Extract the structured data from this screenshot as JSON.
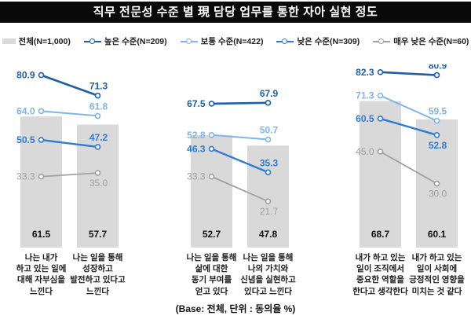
{
  "title": "직무 전문성 수준 별 現 담당 업무를 통한 자아 실현 정도",
  "footer": "(Base: 전체, 단위 : 동의율 %)",
  "legend": [
    {
      "name": "total",
      "label": "전체(N=1,000)",
      "type": "bar",
      "color": "#d9d9d9"
    },
    {
      "name": "high",
      "label": "높은 수준(N=209)",
      "type": "line",
      "color": "#1e5fa9"
    },
    {
      "name": "medium",
      "label": "보통 수준(N=422)",
      "type": "line",
      "color": "#82b4e9"
    },
    {
      "name": "low",
      "label": "낮은 수준(N=309)",
      "type": "line",
      "color": "#2e7bd4"
    },
    {
      "name": "very-low",
      "label": "매우 낮은 수준(N=60)",
      "type": "line",
      "color": "#9e9e9e"
    }
  ],
  "chart_data": {
    "type": "bar",
    "title": "직무 전문성 수준 별 現 담당 업무를 통한 자아 실현 정도",
    "xlabel": "",
    "ylabel": "동의율 %",
    "ylim": [
      0,
      100
    ],
    "grid": false,
    "legend_position": "top",
    "categories": [
      "나는 내가 하고 있는 일에 대해 자부심을 느낀다",
      "나는 일을 통해 성장하고 발전하고 있다고 느낀다",
      "나는 일을 통해 삶에 대한 동기 부여를 얻고 있다",
      "나는 일을 통해 나의 가치와 신념을 실현하고 있다고 느낀다",
      "내가 하고 있는 일이 조직에서 중요한 역할을 한다고 생각한다",
      "내가 하고 있는 일이 사회에 긍정적인 영향을 미치는 것 같다"
    ],
    "category_lines": [
      [
        "나는 내가",
        "하고 있는 일에",
        "대해 자부심을",
        "느낀다"
      ],
      [
        "나는 일을 통해",
        "성장하고",
        "발전하고 있다고",
        "느낀다"
      ],
      [
        "나는 일을 통해",
        "삶에 대한",
        "동기 부여를",
        "얻고 있다"
      ],
      [
        "나는 일을 통해",
        "나의 가치와",
        "신념을 실현하고",
        "있다고 느낀다"
      ],
      [
        "내가 하고 있는",
        "일이 조직에서",
        "중요한 역할을",
        "한다고 생각한다"
      ],
      [
        "내가 하고 있는",
        "일이 사회에",
        "긍정적인 영향을",
        "미치는 것 같다"
      ]
    ],
    "groups": [
      [
        0,
        1
      ],
      [
        2,
        3
      ],
      [
        4,
        5
      ]
    ],
    "bar_series": {
      "name": "전체(N=1,000)",
      "values": [
        61.5,
        57.7,
        52.7,
        47.8,
        68.7,
        60.1
      ]
    },
    "series": [
      {
        "name": "높은 수준(N=209)",
        "values": [
          80.9,
          71.3,
          67.5,
          67.9,
          82.3,
          80.9
        ]
      },
      {
        "name": "보통 수준(N=422)",
        "values": [
          64.0,
          61.8,
          52.8,
          50.7,
          71.3,
          59.5
        ]
      },
      {
        "name": "낮은 수준(N=309)",
        "values": [
          50.5,
          47.2,
          46.3,
          35.3,
          60.5,
          52.8
        ]
      },
      {
        "name": "매우 낮은 수준(N=60)",
        "values": [
          33.3,
          35.0,
          33.3,
          21.7,
          45.0,
          30.0
        ]
      }
    ]
  }
}
